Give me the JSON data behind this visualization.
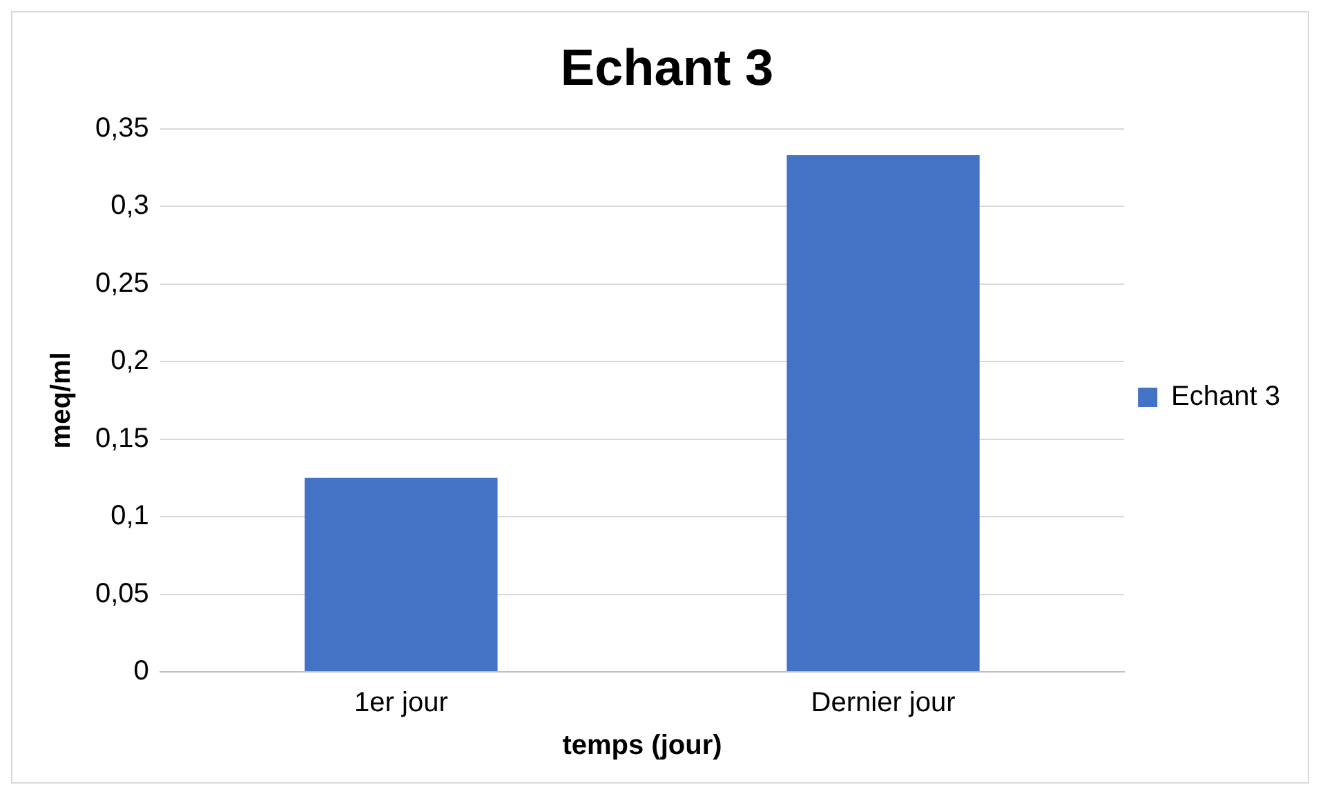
{
  "chart_data": {
    "type": "bar",
    "title": "Echant 3",
    "xlabel": "temps (jour)",
    "ylabel": "meq/ml",
    "categories": [
      "1er jour",
      "Dernier jour"
    ],
    "series": [
      {
        "name": "Echant 3",
        "color": "#4472c4",
        "values": [
          0.125,
          0.333
        ]
      }
    ],
    "ylim": [
      0,
      0.35
    ],
    "yticks": [
      0,
      {
        "value": 0.05,
        "label": "0,05"
      },
      {
        "value": 0.1,
        "label": "0,1"
      },
      {
        "value": 0.15,
        "label": "0,15"
      },
      {
        "value": 0.2,
        "label": "0,2"
      },
      {
        "value": 0.25,
        "label": "0,25"
      },
      {
        "value": 0.3,
        "label": "0,3"
      },
      {
        "value": 0.35,
        "label": "0,35"
      }
    ],
    "grid": "y",
    "legend": "right"
  }
}
